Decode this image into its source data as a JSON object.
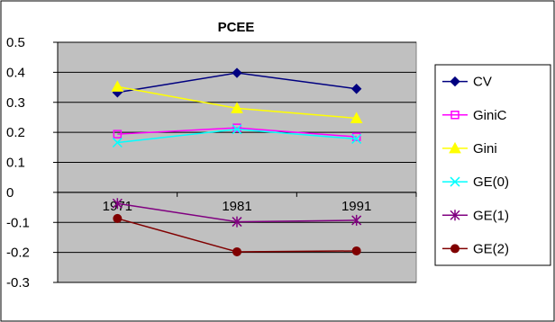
{
  "chart_data": {
    "type": "line",
    "title": "PCEE",
    "xlabel": "",
    "ylabel": "",
    "categories": [
      "1971",
      "1981",
      "1991"
    ],
    "ylim": [
      -0.3,
      0.5
    ],
    "yticks": [
      "0.5",
      "0.4",
      "0.3",
      "0.2",
      "0.1",
      "0",
      "-0.1",
      "-0.2",
      "-0.3"
    ],
    "ytick_values": [
      0.5,
      0.4,
      0.3,
      0.2,
      0.1,
      0,
      -0.1,
      -0.2,
      -0.3
    ],
    "grid": true,
    "legend_position": "right",
    "plot_background": "#c0c0c0",
    "series": [
      {
        "name": "CV",
        "values": [
          0.333,
          0.398,
          0.345
        ],
        "color": "#000080",
        "marker": "diamond"
      },
      {
        "name": "GiniC",
        "values": [
          0.194,
          0.215,
          0.185
        ],
        "color": "#ff00ff",
        "marker": "square"
      },
      {
        "name": "Gini",
        "values": [
          0.352,
          0.28,
          0.247
        ],
        "color": "#ffff00",
        "marker": "triangle"
      },
      {
        "name": "GE(0)",
        "values": [
          0.166,
          0.21,
          0.178
        ],
        "color": "#00ffff",
        "marker": "x"
      },
      {
        "name": "GE(1)",
        "values": [
          -0.037,
          -0.098,
          -0.093
        ],
        "color": "#800080",
        "marker": "star"
      },
      {
        "name": "GE(2)",
        "values": [
          -0.087,
          -0.198,
          -0.195
        ],
        "color": "#800000",
        "marker": "circle"
      }
    ]
  }
}
